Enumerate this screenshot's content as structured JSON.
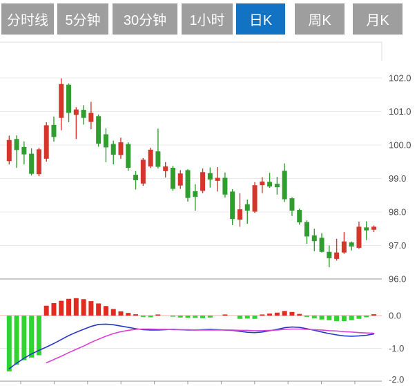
{
  "tab_bar": {
    "tabs": [
      {
        "label": "分时线",
        "active": false
      },
      {
        "label": "5分钟",
        "active": false
      },
      {
        "label": "30分钟",
        "active": false
      },
      {
        "label": "1小时",
        "active": false
      },
      {
        "label": "日K",
        "active": true
      },
      {
        "label": "周K",
        "active": false
      },
      {
        "label": "月K",
        "active": false
      }
    ]
  },
  "colors": {
    "tab_bg": "#9e9e9e",
    "tab_active_bg": "#1273c4",
    "tab_text": "#ffffff",
    "candle_up": "#d5362c",
    "candle_down": "#2f9e2f",
    "macd_up": "#e12b21",
    "macd_down": "#30d330",
    "dif_line": "#2438c8",
    "dea_line": "#da41d4",
    "grid": "#e9e9e9",
    "grid_dark": "#c9c9c9",
    "zero_line": "#eab2b2",
    "axis_line": "#b5b5b5",
    "axis_text": "#4a4a4a"
  },
  "price_axis": {
    "labels": [
      "102.0",
      "101.0",
      "100.0",
      "99.0",
      "98.0",
      "97.0",
      "96.0"
    ],
    "values": [
      102,
      101,
      100,
      99,
      98,
      97,
      96
    ]
  },
  "macd_axis": {
    "labels": [
      "0.0",
      "-1.0",
      "-2.0"
    ],
    "values": [
      0,
      -1,
      -2
    ]
  },
  "chart_data": {
    "type": "candlestick",
    "title": "",
    "selected_period": "日K",
    "panels": [
      "price-candles",
      "macd-indicator"
    ],
    "price_ylim": [
      95.8,
      102.3
    ],
    "macd_ylim": [
      -2.0,
      0.6
    ],
    "grid": "horizontal-only",
    "candles": {
      "columns": [
        "open",
        "high",
        "low",
        "close"
      ],
      "rows": [
        [
          99.52,
          100.28,
          99.42,
          100.15
        ],
        [
          100.18,
          100.29,
          99.32,
          99.85
        ],
        [
          99.94,
          100.11,
          99.42,
          99.72
        ],
        [
          99.74,
          99.9,
          99.09,
          99.14
        ],
        [
          99.13,
          99.92,
          99.07,
          99.87
        ],
        [
          99.59,
          100.68,
          99.5,
          100.59
        ],
        [
          100.6,
          100.85,
          100.1,
          100.24
        ],
        [
          100.81,
          101.99,
          100.44,
          101.82
        ],
        [
          101.8,
          101.84,
          100.68,
          100.96
        ],
        [
          100.9,
          101.13,
          100.18,
          101.06
        ],
        [
          101.05,
          101.19,
          100.61,
          100.81
        ],
        [
          100.69,
          101.29,
          100.47,
          100.96
        ],
        [
          100.86,
          100.91,
          99.95,
          100.04
        ],
        [
          100.32,
          100.5,
          99.49,
          99.93
        ],
        [
          100.03,
          100.13,
          99.42,
          99.71
        ],
        [
          99.7,
          100.22,
          99.59,
          100.08
        ],
        [
          100.03,
          100.08,
          99.23,
          99.32
        ],
        [
          99.11,
          99.22,
          98.67,
          98.95
        ],
        [
          98.85,
          99.61,
          98.78,
          99.56
        ],
        [
          99.36,
          99.92,
          99.31,
          99.86
        ],
        [
          99.81,
          100.49,
          99.3,
          99.35
        ],
        [
          99.22,
          99.49,
          99.03,
          99.36
        ],
        [
          99.32,
          99.38,
          98.63,
          98.69
        ],
        [
          98.79,
          99.25,
          98.69,
          99.15
        ],
        [
          99.25,
          99.28,
          98.31,
          98.42
        ],
        [
          98.62,
          98.83,
          98.04,
          98.45
        ],
        [
          98.63,
          99.3,
          98.56,
          99.19
        ],
        [
          99.16,
          99.33,
          98.73,
          98.97
        ],
        [
          98.93,
          99.34,
          98.61,
          99.02
        ],
        [
          99.02,
          99.18,
          98.43,
          98.52
        ],
        [
          98.61,
          98.68,
          97.61,
          97.79
        ],
        [
          97.77,
          98.56,
          97.56,
          98.08
        ],
        [
          98.23,
          98.37,
          97.65,
          98.04
        ],
        [
          98.01,
          98.89,
          97.98,
          98.8
        ],
        [
          98.8,
          99.04,
          98.56,
          98.91
        ],
        [
          98.9,
          99.17,
          98.72,
          98.76
        ],
        [
          98.84,
          99.05,
          98.52,
          98.74
        ],
        [
          99.23,
          99.45,
          98.3,
          98.38
        ],
        [
          98.41,
          98.44,
          97.88,
          98.04
        ],
        [
          98.06,
          98.1,
          97.62,
          97.69
        ],
        [
          97.7,
          97.75,
          97.05,
          97.27
        ],
        [
          97.3,
          97.5,
          96.83,
          97.13
        ],
        [
          97.23,
          97.37,
          96.79,
          96.81
        ],
        [
          96.81,
          97.0,
          96.35,
          96.62
        ],
        [
          96.6,
          97.2,
          96.55,
          96.79
        ],
        [
          96.79,
          97.4,
          96.75,
          97.12
        ],
        [
          97.09,
          97.12,
          96.85,
          96.97
        ],
        [
          96.93,
          97.71,
          96.9,
          97.56
        ],
        [
          97.54,
          97.72,
          97.16,
          97.45
        ],
        [
          97.47,
          97.6,
          97.4,
          97.56
        ]
      ]
    },
    "macd": {
      "histogram": [
        -1.7,
        -1.5,
        -1.36,
        -1.28,
        -1.21,
        0.3,
        0.38,
        0.45,
        0.51,
        0.53,
        0.5,
        0.44,
        0.37,
        0.29,
        0.2,
        0.13,
        0.08,
        0.04,
        -0.04,
        -0.05,
        0.03,
        0.0,
        -0.02,
        -0.06,
        -0.07,
        -0.07,
        -0.08,
        -0.06,
        0.0,
        0.03,
        0.0,
        -0.1,
        -0.09,
        -0.1,
        0.02,
        0.06,
        0.09,
        0.14,
        0.11,
        0.05,
        -0.04,
        -0.08,
        -0.12,
        -0.14,
        -0.17,
        -0.17,
        -0.14,
        -0.1,
        -0.05,
        0.04
      ],
      "dif": [
        -1.62,
        -1.45,
        -1.3,
        -1.17,
        -1.06,
        -0.96,
        -0.85,
        -0.73,
        -0.61,
        -0.51,
        -0.42,
        -0.33,
        -0.27,
        -0.26,
        -0.28,
        -0.32,
        -0.36,
        -0.4,
        -0.43,
        -0.44,
        -0.44,
        -0.43,
        -0.42,
        -0.43,
        -0.44,
        -0.44,
        -0.43,
        -0.42,
        -0.43,
        -0.44,
        -0.45,
        -0.48,
        -0.51,
        -0.52,
        -0.5,
        -0.46,
        -0.42,
        -0.37,
        -0.35,
        -0.36,
        -0.4,
        -0.45,
        -0.5,
        -0.55,
        -0.59,
        -0.62,
        -0.63,
        -0.62,
        -0.6,
        -0.56
      ],
      "dea": [
        null,
        null,
        null,
        null,
        null,
        -1.44,
        -1.34,
        -1.24,
        -1.13,
        -1.03,
        -0.93,
        -0.82,
        -0.72,
        -0.63,
        -0.55,
        -0.49,
        -0.45,
        -0.42,
        -0.41,
        -0.41,
        -0.42,
        -0.42,
        -0.43,
        -0.43,
        -0.43,
        -0.44,
        -0.44,
        -0.44,
        -0.44,
        -0.44,
        -0.44,
        -0.45,
        -0.45,
        -0.46,
        -0.46,
        -0.45,
        -0.44,
        -0.42,
        -0.41,
        -0.41,
        -0.42,
        -0.43,
        -0.44,
        -0.46,
        -0.47,
        -0.49,
        -0.5,
        -0.52,
        -0.53,
        -0.54
      ]
    }
  }
}
